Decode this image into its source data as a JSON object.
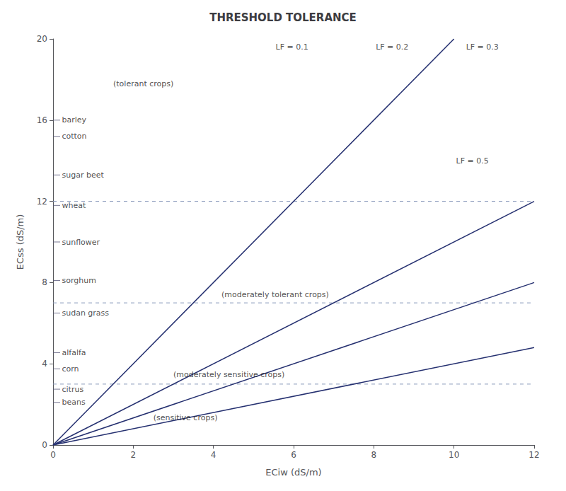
{
  "chart_data": {
    "type": "line",
    "title": "THRESHOLD TOLERANCE",
    "x_label": "ECiw (dS/m)",
    "y_label": "ECss (dS/m)",
    "xlim": [
      0,
      12
    ],
    "ylim": [
      0,
      20
    ],
    "xticks": [
      0,
      2,
      4,
      6,
      8,
      10,
      12
    ],
    "yticks": [
      0,
      4,
      8,
      12,
      16,
      20
    ],
    "grid": false,
    "series": [
      {
        "type": "line",
        "color": "#253070",
        "x": [
          0,
          10
        ],
        "values": [
          0,
          20
        ]
      },
      {
        "type": "line",
        "color": "#253070",
        "x": [
          0,
          12
        ],
        "values": [
          0,
          12
        ]
      },
      {
        "type": "line",
        "color": "#253070",
        "x": [
          0,
          12
        ],
        "values": [
          0,
          8.0004
        ]
      },
      {
        "type": "line",
        "color": "#253070",
        "x": [
          0,
          12
        ],
        "values": [
          0,
          4.8
        ]
      },
      {
        "type": "line",
        "line_style": "dashed",
        "color": "#8899bb",
        "x": [
          0,
          12
        ],
        "values": [
          3.0,
          3.0
        ]
      },
      {
        "type": "line",
        "line_style": "dashed",
        "color": "#8899bb",
        "x": [
          0,
          12
        ],
        "values": [
          7.0,
          7.0
        ]
      },
      {
        "type": "line",
        "line_style": "dashed",
        "color": "#8899bb",
        "x": [
          0,
          12
        ],
        "values": [
          12.0,
          12.0
        ]
      },
      {
        "type": "scatter",
        "marker": "tick",
        "color": "#555577",
        "x": [
          0,
          0,
          0,
          0,
          0,
          0,
          0,
          0,
          0,
          0,
          0
        ],
        "values": [
          16.0,
          15.2,
          13.3,
          11.8,
          10.0,
          8.1,
          6.5,
          4.55,
          3.75,
          2.75,
          2.1
        ]
      }
    ],
    "annotations": [
      {
        "text": "(tolerant crops)",
        "x": 1.5,
        "y": 17.8
      },
      {
        "text": "barley",
        "x": 0.22,
        "y": 16.0
      },
      {
        "text": "cotton",
        "x": 0.22,
        "y": 15.2
      },
      {
        "text": "sugar beet",
        "x": 0.22,
        "y": 13.3
      },
      {
        "text": "wheat",
        "x": 0.22,
        "y": 11.8
      },
      {
        "text": "sunflower",
        "x": 0.22,
        "y": 10.0
      },
      {
        "text": "sorghum",
        "x": 0.22,
        "y": 8.1
      },
      {
        "text": "(moderately tolerant crops)",
        "x": 4.2,
        "y": 7.4
      },
      {
        "text": "sudan grass",
        "x": 0.22,
        "y": 6.5
      },
      {
        "text": "alfalfa",
        "x": 0.22,
        "y": 4.55
      },
      {
        "text": "corn",
        "x": 0.22,
        "y": 3.75
      },
      {
        "text": "(moderately sensitive crops)",
        "x": 3.0,
        "y": 3.45
      },
      {
        "text": "citrus",
        "x": 0.22,
        "y": 2.75
      },
      {
        "text": "beans",
        "x": 0.22,
        "y": 2.1
      },
      {
        "text": "(sensitive crops)",
        "x": 2.5,
        "y": 1.35
      },
      {
        "text": "LF = 0.1",
        "x": 5.55,
        "y": 19.6
      },
      {
        "text": "LF = 0.2",
        "x": 8.05,
        "y": 19.6
      },
      {
        "text": "LF = 0.3",
        "x": 10.3,
        "y": 19.6
      },
      {
        "text": "LF = 0.5",
        "x": 10.05,
        "y": 14.0
      }
    ]
  }
}
